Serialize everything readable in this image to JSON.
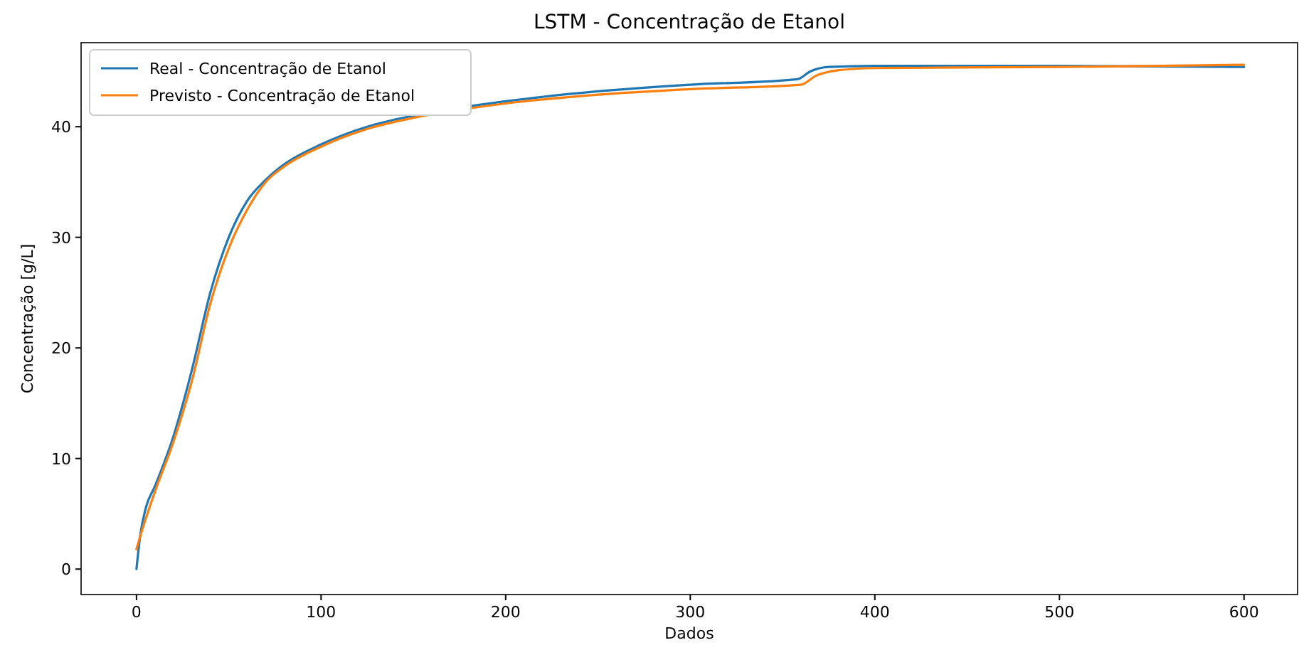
{
  "chart_data": {
    "type": "line",
    "title": "LSTM - Concentração de Etanol",
    "xlabel": "Dados",
    "ylabel": "Concentração [g/L]",
    "xlim": [
      -30,
      629
    ],
    "ylim": [
      -2.3,
      47.6
    ],
    "xticks": [
      0,
      100,
      200,
      300,
      400,
      500,
      600
    ],
    "yticks": [
      0,
      10,
      20,
      30,
      40
    ],
    "grid": false,
    "legend": "top left",
    "series": [
      {
        "name": "Real - Concentração de Etanol",
        "color": "#1f77b4",
        "x": [
          0,
          2,
          5,
          10,
          20,
          30,
          40,
          50,
          60,
          70,
          80,
          100,
          125,
          150,
          200,
          250,
          300,
          358,
          365,
          375,
          400,
          500,
          600
        ],
        "values": [
          0,
          3,
          5.5,
          7.5,
          12,
          18,
          25,
          30,
          33.3,
          35.2,
          36.6,
          38.4,
          40,
          41,
          42.3,
          43.2,
          43.8,
          44.3,
          45,
          45.4,
          45.5,
          45.5,
          45.4
        ]
      },
      {
        "name": "Previsto - Concentração de Etanol",
        "color": "#ff7f0e",
        "x": [
          0,
          3,
          10,
          20,
          30,
          40,
          50,
          60,
          70,
          80,
          100,
          125,
          150,
          200,
          250,
          300,
          360,
          368,
          380,
          400,
          500,
          600
        ],
        "values": [
          1.8,
          3.5,
          7,
          11.5,
          17,
          24,
          29,
          32.5,
          35,
          36.4,
          38.2,
          39.8,
          40.8,
          42.1,
          42.9,
          43.4,
          43.8,
          44.6,
          45.1,
          45.3,
          45.4,
          45.6
        ]
      }
    ]
  }
}
